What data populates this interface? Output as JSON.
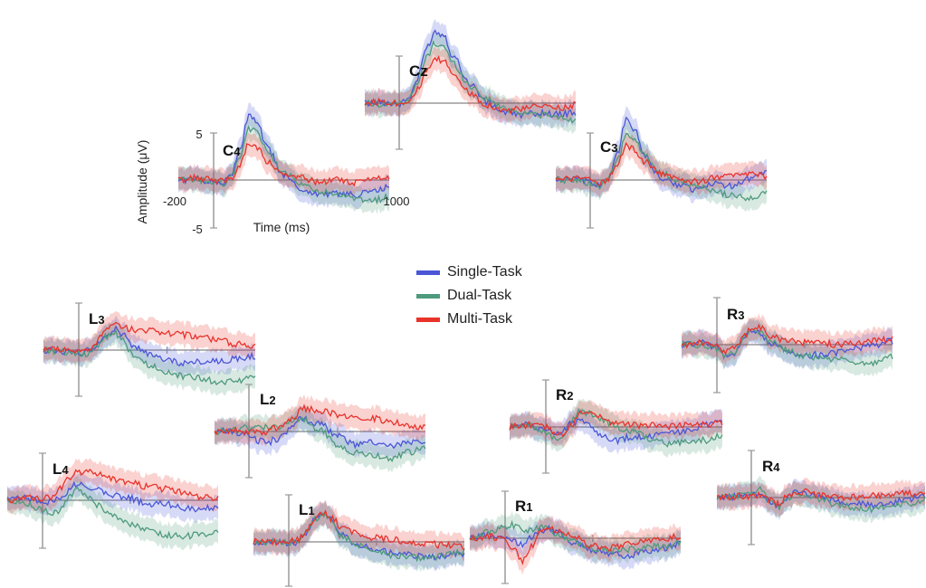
{
  "legend": {
    "placement": "center",
    "items": [
      {
        "label": "Single-Task",
        "color": "#4a56d6"
      },
      {
        "label": "Dual-Task",
        "color": "#4e9a7c"
      },
      {
        "label": "Multi-Task",
        "color": "#e8332b"
      }
    ]
  },
  "axes_labels": {
    "ylabel": "Amplitude (μV)",
    "xlabel": "Time (ms)",
    "y_ticks": [
      "5",
      "-5"
    ],
    "x_ticks": [
      "-200",
      "1000"
    ]
  },
  "chart_data": {
    "type": "line",
    "xlabel": "Time (ms)",
    "ylabel": "Amplitude (μV)",
    "xlim": [
      -200,
      1000
    ],
    "ylim": [
      -5,
      5
    ],
    "x": [
      -200,
      -100,
      0,
      50,
      100,
      150,
      200,
      250,
      300,
      400,
      500,
      600,
      700,
      800,
      900,
      1000
    ],
    "grid": false,
    "legend_placement": "center",
    "channels": [
      {
        "name": "Cz",
        "series": [
          {
            "name": "Single-Task",
            "values": [
              0,
              0.1,
              -0.1,
              0.5,
              2.5,
              5.8,
              7.5,
              7.2,
              5.0,
              2.0,
              0.0,
              -1.0,
              -1.2,
              -1.0,
              -1.2,
              -1.0
            ]
          },
          {
            "name": "Dual-Task",
            "values": [
              0,
              -0.1,
              0,
              0.4,
              2.0,
              4.8,
              6.3,
              6.0,
              4.2,
              1.8,
              0.4,
              -0.6,
              -1.0,
              -1.2,
              -1.5,
              -1.8
            ]
          },
          {
            "name": "Multi-Task",
            "values": [
              0,
              0.2,
              0,
              0.3,
              1.4,
              3.2,
              4.6,
              4.4,
              3.2,
              1.0,
              -0.2,
              -0.8,
              -0.6,
              -0.3,
              -0.5,
              -0.2
            ]
          }
        ]
      },
      {
        "name": "C4",
        "series": [
          {
            "name": "Single-Task",
            "values": [
              0,
              0.1,
              -0.2,
              -0.3,
              0.5,
              3.0,
              6.8,
              6.0,
              3.5,
              0.5,
              -1.0,
              -1.5,
              -1.4,
              -1.6,
              -1.2,
              -0.8
            ]
          },
          {
            "name": "Dual-Task",
            "values": [
              0,
              0,
              -0.2,
              -0.4,
              0.3,
              2.4,
              5.4,
              5.0,
              3.2,
              0.8,
              -0.5,
              -1.2,
              -1.6,
              -2.0,
              -2.2,
              -1.8
            ]
          },
          {
            "name": "Multi-Task",
            "values": [
              0,
              0.2,
              0,
              -0.1,
              0.2,
              1.6,
              3.8,
              3.4,
              2.0,
              0.5,
              0.2,
              -0.2,
              0.1,
              -0.3,
              0.3,
              0.2
            ]
          }
        ]
      },
      {
        "name": "C3",
        "series": [
          {
            "name": "Single-Task",
            "values": [
              0,
              0.1,
              -0.3,
              -0.6,
              0.3,
              2.8,
              6.4,
              5.2,
              2.6,
              0.2,
              -0.5,
              -1.0,
              -0.4,
              -0.6,
              0.2,
              0.8
            ]
          },
          {
            "name": "Dual-Task",
            "values": [
              0,
              0,
              -0.3,
              -0.8,
              0.2,
              2.0,
              4.6,
              4.2,
              2.6,
              0.8,
              -0.2,
              -0.6,
              -1.2,
              -1.6,
              -2.0,
              -1.2
            ]
          },
          {
            "name": "Multi-Task",
            "values": [
              0,
              0.2,
              0,
              -0.4,
              0.2,
              1.6,
              3.6,
              3.2,
              2.0,
              0.6,
              0.2,
              -0.2,
              0.2,
              0.4,
              0.6,
              0.4
            ]
          }
        ]
      },
      {
        "name": "L3",
        "series": [
          {
            "name": "Single-Task",
            "values": [
              0,
              -0.1,
              -0.3,
              -0.1,
              0.5,
              1.5,
              2.2,
              1.6,
              0.6,
              -0.5,
              -1.0,
              -1.4,
              -1.2,
              -1.2,
              -0.9,
              -0.6
            ]
          },
          {
            "name": "Dual-Task",
            "values": [
              0,
              -0.2,
              -0.4,
              -0.4,
              0.3,
              1.4,
              1.9,
              1.0,
              -0.4,
              -1.6,
              -2.4,
              -2.8,
              -3.0,
              -3.4,
              -3.2,
              -2.6
            ]
          },
          {
            "name": "Multi-Task",
            "values": [
              0,
              0.1,
              -0.2,
              0,
              0.8,
              2.0,
              2.6,
              2.4,
              2.2,
              2.1,
              1.8,
              1.6,
              1.4,
              1.0,
              0.6,
              0.4
            ]
          }
        ]
      },
      {
        "name": "L2",
        "series": [
          {
            "name": "Single-Task",
            "values": [
              0,
              0,
              -0.4,
              -1.0,
              -1.2,
              -0.8,
              -0.2,
              0.8,
              1.4,
              0.8,
              -0.4,
              -1.4,
              -1.2,
              -1.6,
              -1.2,
              -1.0
            ]
          },
          {
            "name": "Dual-Task",
            "values": [
              0,
              0.1,
              0.4,
              0.6,
              0.4,
              0.4,
              0.8,
              1.2,
              1.2,
              0.2,
              -1.4,
              -2.2,
              -2.6,
              -2.8,
              -2.2,
              -1.8
            ]
          },
          {
            "name": "Multi-Task",
            "values": [
              0,
              0.1,
              0,
              -0.2,
              0,
              0.4,
              0.8,
              1.4,
              2.4,
              2.2,
              1.8,
              1.6,
              1.4,
              1.0,
              0.6,
              0.4
            ]
          }
        ]
      },
      {
        "name": "L4",
        "series": [
          {
            "name": "Single-Task",
            "values": [
              0,
              0.2,
              0,
              -0.2,
              0.2,
              1.0,
              1.8,
              1.6,
              1.2,
              0.6,
              0.2,
              -0.4,
              -0.4,
              -0.8,
              -1.0,
              -0.6
            ]
          },
          {
            "name": "Dual-Task",
            "values": [
              0,
              -0.4,
              -1.0,
              -1.6,
              -1.0,
              0.2,
              1.0,
              0.6,
              -0.4,
              -1.6,
              -2.6,
              -3.0,
              -3.6,
              -3.8,
              -3.6,
              -3.2
            ]
          },
          {
            "name": "Multi-Task",
            "values": [
              0,
              0.2,
              0.2,
              0.4,
              1.2,
              2.2,
              3.0,
              3.0,
              2.8,
              2.2,
              1.8,
              1.4,
              1.2,
              0.8,
              0.4,
              0.2
            ]
          }
        ]
      },
      {
        "name": "L1",
        "series": [
          {
            "name": "Single-Task",
            "values": [
              0,
              0,
              -0.2,
              0,
              1.0,
              2.6,
              3.2,
              2.2,
              0.8,
              -0.4,
              -0.9,
              -1.2,
              -1.4,
              -1.6,
              -1.4,
              -1.2
            ]
          },
          {
            "name": "Dual-Task",
            "values": [
              0,
              0,
              -0.1,
              0,
              1.0,
              2.4,
              3.0,
              2.0,
              0.6,
              -0.4,
              -1.0,
              -1.4,
              -1.6,
              -1.8,
              -1.4,
              -1.0
            ]
          },
          {
            "name": "Multi-Task",
            "values": [
              0,
              0,
              0,
              0.2,
              1.2,
              2.6,
              3.0,
              2.4,
              1.6,
              0.8,
              0.4,
              0.2,
              0,
              -0.2,
              -0.4,
              -0.6
            ]
          }
        ]
      },
      {
        "name": "R1",
        "series": [
          {
            "name": "Single-Task",
            "values": [
              0,
              0.4,
              0.2,
              -0.4,
              -0.6,
              0,
              0.8,
              1.0,
              0.6,
              -0.6,
              -1.2,
              -1.6,
              -1.8,
              -1.4,
              -1.0,
              -0.6
            ]
          },
          {
            "name": "Dual-Task",
            "values": [
              0,
              0.6,
              1.2,
              1.4,
              1.0,
              0.8,
              1.2,
              1.0,
              0.4,
              -0.4,
              -1.0,
              -1.4,
              -1.2,
              -1.0,
              -0.8,
              -0.4
            ]
          },
          {
            "name": "Multi-Task",
            "values": [
              0,
              0.2,
              -0.2,
              -1.2,
              -2.4,
              -0.8,
              0.6,
              1.0,
              0.8,
              0,
              -0.8,
              -1.0,
              -0.6,
              -0.2,
              0,
              0.2
            ]
          }
        ]
      },
      {
        "name": "R2",
        "series": [
          {
            "name": "Single-Task",
            "values": [
              0,
              0.2,
              -0.2,
              -0.6,
              -0.4,
              0.4,
              0.8,
              0.2,
              -0.8,
              -1.4,
              -1.0,
              -1.0,
              -0.6,
              -0.4,
              0.2,
              0.6
            ]
          },
          {
            "name": "Dual-Task",
            "values": [
              0,
              0.2,
              -0.4,
              -1.2,
              -1.0,
              0.6,
              1.6,
              1.4,
              0.8,
              0,
              -0.6,
              -1.2,
              -1.8,
              -1.6,
              -1.4,
              -0.8
            ]
          },
          {
            "name": "Multi-Task",
            "values": [
              0,
              0.2,
              0,
              -0.6,
              -0.8,
              0.2,
              1.4,
              1.6,
              1.0,
              0.4,
              0.2,
              0.2,
              0,
              0.2,
              0.2,
              0.4
            ]
          }
        ]
      },
      {
        "name": "R3",
        "series": [
          {
            "name": "Single-Task",
            "values": [
              0,
              0.2,
              -0.2,
              -1.4,
              -1.0,
              0.6,
              1.6,
              1.2,
              0.2,
              -0.6,
              -1.2,
              -1.0,
              -0.8,
              -0.4,
              0,
              0.4
            ]
          },
          {
            "name": "Dual-Task",
            "values": [
              0,
              0,
              -0.4,
              -1.2,
              -0.8,
              0.6,
              1.4,
              1.2,
              0.4,
              -0.6,
              -1.2,
              -1.4,
              -1.6,
              -1.8,
              -2.0,
              -1.2
            ]
          },
          {
            "name": "Multi-Task",
            "values": [
              0,
              0.2,
              0,
              -0.8,
              -0.4,
              0.8,
              1.8,
              1.8,
              1.0,
              0.4,
              0.2,
              0.2,
              0,
              0.2,
              0.4,
              0.6
            ]
          }
        ]
      },
      {
        "name": "R4",
        "series": [
          {
            "name": "Single-Task",
            "values": [
              0,
              0.1,
              0.2,
              0.6,
              -0.4,
              -0.8,
              -0.2,
              0.6,
              0.4,
              0,
              -0.4,
              -0.6,
              -0.8,
              -0.6,
              -0.2,
              0.2
            ]
          },
          {
            "name": "Dual-Task",
            "values": [
              0,
              0.1,
              0.6,
              1.0,
              -0.4,
              -1.0,
              -0.4,
              0.4,
              0.4,
              -0.2,
              -0.8,
              -1.0,
              -1.2,
              -1.0,
              -0.6,
              -0.2
            ]
          },
          {
            "name": "Multi-Task",
            "values": [
              0,
              0.1,
              0.1,
              0.2,
              -0.2,
              -0.6,
              0,
              0.6,
              0.6,
              0.2,
              0,
              0,
              0.2,
              0.4,
              0.4,
              0.6
            ]
          }
        ]
      }
    ]
  },
  "band_width": 1.2
}
